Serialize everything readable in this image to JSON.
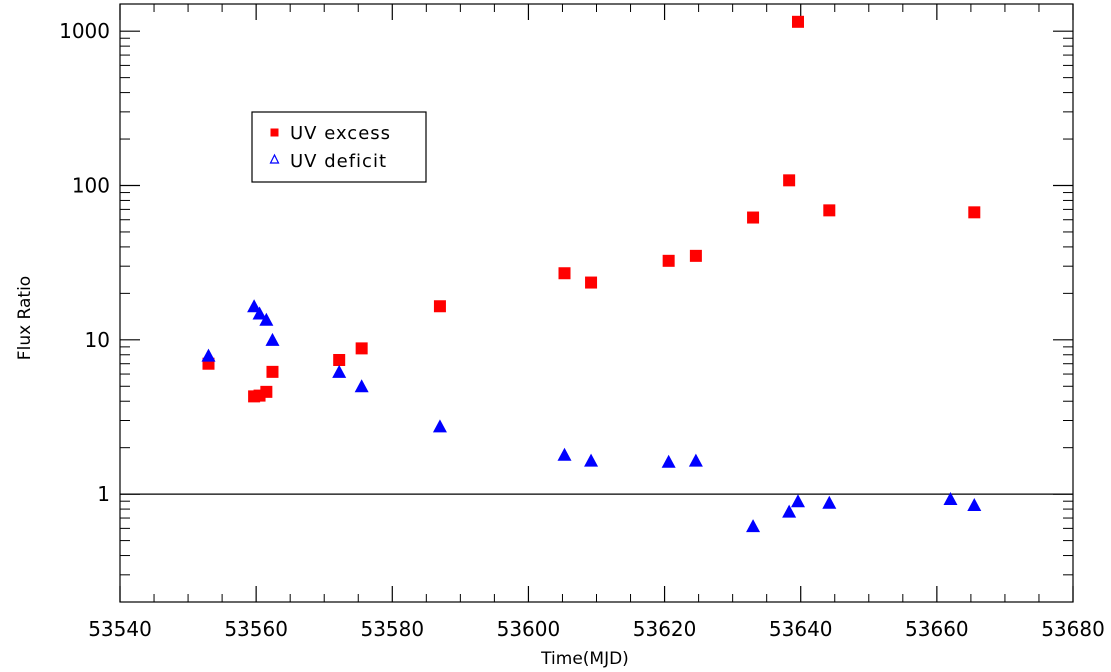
{
  "chart_data": {
    "type": "scatter",
    "title": "",
    "xlabel": "Time(MJD)",
    "ylabel": "Flux Ratio",
    "xlim": [
      53540,
      53680
    ],
    "ylim": [
      0.2,
      1500
    ],
    "yscale": "log",
    "x_ticks": [
      53540,
      53560,
      53580,
      53600,
      53620,
      53640,
      53660,
      53680
    ],
    "x_tick_labels": [
      "53540",
      "53560",
      "53580",
      "53600",
      "53620",
      "53640",
      "53660",
      "53680"
    ],
    "y_ticks": [
      1,
      10,
      100,
      1000
    ],
    "y_tick_labels": [
      "1",
      "10",
      "100",
      "1000"
    ],
    "grid": false,
    "reference_line": {
      "y": 1,
      "color": "#000000"
    },
    "legend": {
      "position": "top-left"
    },
    "series": [
      {
        "name": "UV excess",
        "marker": "square",
        "color": "#ff0000",
        "points": [
          {
            "x": 53553,
            "y": 7.0
          },
          {
            "x": 53559.7,
            "y": 4.3
          },
          {
            "x": 53560.5,
            "y": 4.35
          },
          {
            "x": 53561.5,
            "y": 4.6
          },
          {
            "x": 53562.4,
            "y": 6.2
          },
          {
            "x": 53572.2,
            "y": 7.4
          },
          {
            "x": 53575.5,
            "y": 8.8
          },
          {
            "x": 53587,
            "y": 16.5
          },
          {
            "x": 53605.3,
            "y": 27
          },
          {
            "x": 53609.2,
            "y": 23.5
          },
          {
            "x": 53620.6,
            "y": 32.5
          },
          {
            "x": 53624.6,
            "y": 35
          },
          {
            "x": 53633,
            "y": 62
          },
          {
            "x": 53638.3,
            "y": 108
          },
          {
            "x": 53639.6,
            "y": 1150
          },
          {
            "x": 53644.2,
            "y": 69
          },
          {
            "x": 53665.5,
            "y": 67
          }
        ]
      },
      {
        "name": "UV deficit",
        "marker": "triangle",
        "color": "#0000ff",
        "points": [
          {
            "x": 53553,
            "y": 7.9
          },
          {
            "x": 53559.7,
            "y": 16.5
          },
          {
            "x": 53560.5,
            "y": 14.8
          },
          {
            "x": 53561.5,
            "y": 13.5
          },
          {
            "x": 53562.4,
            "y": 10.0
          },
          {
            "x": 53572.2,
            "y": 6.2
          },
          {
            "x": 53575.5,
            "y": 5.0
          },
          {
            "x": 53587,
            "y": 2.75
          },
          {
            "x": 53605.3,
            "y": 1.8
          },
          {
            "x": 53609.2,
            "y": 1.65
          },
          {
            "x": 53620.6,
            "y": 1.62
          },
          {
            "x": 53624.6,
            "y": 1.65
          },
          {
            "x": 53633,
            "y": 0.62
          },
          {
            "x": 53638.3,
            "y": 0.77
          },
          {
            "x": 53639.6,
            "y": 0.9
          },
          {
            "x": 53644.2,
            "y": 0.88
          },
          {
            "x": 53662,
            "y": 0.93
          },
          {
            "x": 53665.5,
            "y": 0.85
          }
        ]
      }
    ]
  }
}
